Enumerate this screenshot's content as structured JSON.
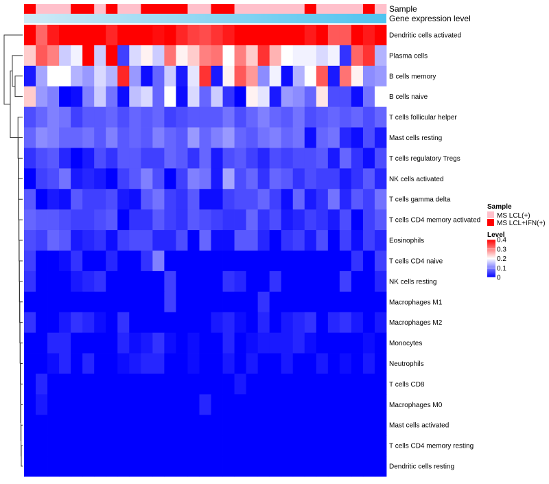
{
  "chart_data": {
    "type": "heatmap",
    "annotation_labels": [
      "Sample",
      "Gene expression level"
    ],
    "rows": [
      "Dendritic cells activated",
      "Plasma cells",
      "B cells memory",
      "B cells naive",
      "T cells follicular helper",
      "Mast cells resting",
      "T cells regulatory  Tregs",
      "NK cells activated",
      "T cells gamma delta",
      "T cells CD4 memory activated",
      "Eosinophils",
      "T cells CD4 naive",
      "NK cells resting",
      "Macrophages M1",
      "Macrophages M2",
      "Monocytes",
      "Neutrophils",
      "T cells CD8",
      "Macrophages M0",
      "Mast cells activated",
      "T cells CD4 memory resting",
      "Dendritic cells resting"
    ],
    "sample_groups": [
      "MS LCL+IFN(+)",
      "MS LCL(+)",
      "MS LCL(+)",
      "MS LCL(+)",
      "MS LCL+IFN(+)",
      "MS LCL+IFN(+)",
      "MS LCL(+)",
      "MS LCL+IFN(+)",
      "MS LCL(+)",
      "MS LCL(+)",
      "MS LCL+IFN(+)",
      "MS LCL+IFN(+)",
      "MS LCL+IFN(+)",
      "MS LCL+IFN(+)",
      "MS LCL(+)",
      "MS LCL(+)",
      "MS LCL+IFN(+)",
      "MS LCL+IFN(+)",
      "MS LCL(+)",
      "MS LCL(+)",
      "MS LCL(+)",
      "MS LCL(+)",
      "MS LCL(+)",
      "MS LCL(+)",
      "MS LCL+IFN(+)",
      "MS LCL(+)",
      "MS LCL(+)",
      "MS LCL(+)",
      "MS LCL(+)",
      "MS LCL+IFN(+)",
      "MS LCL(+)"
    ],
    "expression_gradient": [
      "#cfeaf6",
      "#4fc3ef"
    ],
    "values": [
      [
        0.4,
        0.32,
        0.38,
        0.42,
        0.43,
        0.4,
        0.43,
        0.37,
        0.43,
        0.41,
        0.42,
        0.39,
        0.43,
        0.37,
        0.35,
        0.34,
        0.36,
        0.38,
        0.4,
        0.41,
        0.43,
        0.44,
        0.44,
        0.4,
        0.38,
        0.41,
        0.33,
        0.33,
        0.41,
        0.38,
        0.4
      ],
      [
        0.24,
        0.33,
        0.3,
        0.16,
        0.19,
        0.42,
        0.16,
        0.42,
        0.05,
        0.17,
        0.21,
        0.16,
        0.31,
        0.21,
        0.24,
        0.3,
        0.31,
        0.2,
        0.3,
        0.24,
        0.36,
        0.26,
        0.2,
        0.19,
        0.19,
        0.17,
        0.19,
        0.04,
        0.32,
        0.36,
        0.14
      ],
      [
        0.02,
        0.13,
        0.2,
        0.2,
        0.14,
        0.12,
        0.17,
        0.14,
        0.37,
        0.12,
        0.01,
        0.08,
        0.16,
        0.02,
        0.18,
        0.36,
        0.02,
        0.21,
        0.33,
        0.28,
        0.11,
        0.19,
        0.01,
        0.14,
        0.2,
        0.33,
        0.02,
        0.31,
        0.21,
        0.11,
        0.12
      ],
      [
        0.24,
        0.12,
        0.1,
        0.0,
        0.01,
        0.1,
        0.16,
        0.09,
        0.01,
        0.15,
        0.17,
        0.08,
        0.2,
        0.01,
        0.17,
        0.08,
        0.16,
        0.04,
        0.0,
        0.21,
        0.18,
        0.02,
        0.12,
        0.11,
        0.08,
        0.22,
        0.06,
        0.06,
        0.01,
        0.09,
        0.2
      ],
      [
        0.06,
        0.08,
        0.1,
        0.09,
        0.05,
        0.07,
        0.07,
        0.08,
        0.06,
        0.08,
        0.07,
        0.08,
        0.05,
        0.06,
        0.07,
        0.07,
        0.07,
        0.09,
        0.06,
        0.08,
        0.1,
        0.08,
        0.07,
        0.09,
        0.06,
        0.07,
        0.08,
        0.07,
        0.08,
        0.06,
        0.08
      ],
      [
        0.08,
        0.11,
        0.1,
        0.08,
        0.08,
        0.09,
        0.07,
        0.1,
        0.07,
        0.08,
        0.07,
        0.1,
        0.08,
        0.07,
        0.12,
        0.08,
        0.1,
        0.12,
        0.08,
        0.07,
        0.09,
        0.1,
        0.08,
        0.09,
        0.01,
        0.08,
        0.09,
        0.03,
        0.01,
        0.06,
        0.02
      ],
      [
        0.04,
        0.06,
        0.07,
        0.03,
        0.0,
        0.02,
        0.06,
        0.04,
        0.07,
        0.07,
        0.05,
        0.05,
        0.08,
        0.07,
        0.04,
        0.08,
        0.02,
        0.06,
        0.07,
        0.05,
        0.03,
        0.06,
        0.05,
        0.06,
        0.06,
        0.07,
        0.02,
        0.08,
        0.04,
        0.01,
        0.06
      ],
      [
        0.0,
        0.05,
        0.06,
        0.09,
        0.02,
        0.03,
        0.02,
        0.0,
        0.05,
        0.07,
        0.1,
        0.06,
        0.0,
        0.05,
        0.1,
        0.09,
        0.02,
        0.13,
        0.06,
        0.08,
        0.04,
        0.08,
        0.07,
        0.04,
        0.06,
        0.05,
        0.05,
        0.02,
        0.04,
        0.07,
        0.03
      ],
      [
        0.07,
        0.0,
        0.02,
        0.01,
        0.07,
        0.05,
        0.05,
        0.06,
        0.02,
        0.01,
        0.07,
        0.09,
        0.05,
        0.04,
        0.07,
        0.01,
        0.01,
        0.05,
        0.06,
        0.06,
        0.08,
        0.05,
        0.01,
        0.08,
        0.02,
        0.04,
        0.09,
        0.03,
        0.07,
        0.05,
        0.09
      ],
      [
        0.08,
        0.07,
        0.07,
        0.06,
        0.05,
        0.05,
        0.06,
        0.07,
        0.0,
        0.04,
        0.04,
        0.07,
        0.05,
        0.04,
        0.07,
        0.06,
        0.05,
        0.04,
        0.04,
        0.08,
        0.04,
        0.06,
        0.02,
        0.03,
        0.05,
        0.04,
        0.02,
        0.06,
        0.0,
        0.05,
        0.07
      ],
      [
        0.06,
        0.05,
        0.08,
        0.07,
        0.02,
        0.03,
        0.04,
        0.01,
        0.05,
        0.06,
        0.06,
        0.03,
        0.03,
        0.06,
        0.0,
        0.08,
        0.01,
        0.01,
        0.07,
        0.07,
        0.03,
        0.0,
        0.04,
        0.05,
        0.02,
        0.06,
        0.0,
        0.05,
        0.01,
        0.05,
        0.03
      ],
      [
        0.05,
        0.0,
        0.0,
        0.01,
        0.04,
        0.0,
        0.0,
        0.03,
        0.0,
        0.0,
        0.04,
        0.1,
        0.0,
        0.0,
        0.0,
        0.0,
        0.0,
        0.0,
        0.0,
        0.0,
        0.0,
        0.0,
        0.0,
        0.0,
        0.0,
        0.0,
        0.0,
        0.0,
        0.04,
        0.0,
        0.05
      ],
      [
        0.04,
        0.0,
        0.0,
        0.0,
        0.02,
        0.03,
        0.04,
        0.0,
        0.0,
        0.0,
        0.0,
        0.0,
        0.05,
        0.0,
        0.0,
        0.0,
        0.0,
        0.04,
        0.03,
        0.0,
        0.0,
        0.04,
        0.0,
        0.0,
        0.0,
        0.0,
        0.0,
        0.05,
        0.0,
        0.0,
        0.03
      ],
      [
        0.0,
        0.0,
        0.0,
        0.0,
        0.0,
        0.0,
        0.0,
        0.0,
        0.0,
        0.0,
        0.0,
        0.0,
        0.05,
        0.0,
        0.0,
        0.0,
        0.0,
        0.0,
        0.0,
        0.0,
        0.04,
        0.0,
        0.0,
        0.0,
        0.0,
        0.0,
        0.0,
        0.0,
        0.0,
        0.0,
        0.0
      ],
      [
        0.04,
        0.0,
        0.0,
        0.02,
        0.04,
        0.03,
        0.01,
        0.0,
        0.04,
        0.0,
        0.0,
        0.0,
        0.0,
        0.0,
        0.0,
        0.0,
        0.02,
        0.03,
        0.01,
        0.0,
        0.03,
        0.0,
        0.02,
        0.03,
        0.04,
        0.0,
        0.03,
        0.04,
        0.02,
        0.0,
        0.02
      ],
      [
        0.0,
        0.0,
        0.03,
        0.03,
        0.0,
        0.0,
        0.0,
        0.0,
        0.03,
        0.01,
        0.02,
        0.04,
        0.01,
        0.0,
        0.01,
        0.0,
        0.0,
        0.03,
        0.0,
        0.01,
        0.02,
        0.02,
        0.02,
        0.03,
        0.01,
        0.0,
        0.0,
        0.0,
        0.0,
        0.01,
        0.0
      ],
      [
        0.0,
        0.0,
        0.01,
        0.03,
        0.0,
        0.03,
        0.0,
        0.0,
        0.01,
        0.02,
        0.03,
        0.03,
        0.0,
        0.0,
        0.01,
        0.0,
        0.0,
        0.02,
        0.0,
        0.02,
        0.0,
        0.0,
        0.02,
        0.0,
        0.0,
        0.02,
        0.0,
        0.01,
        0.0,
        0.02,
        0.0
      ],
      [
        0.0,
        0.03,
        0.0,
        0.0,
        0.0,
        0.0,
        0.0,
        0.0,
        0.0,
        0.0,
        0.0,
        0.0,
        0.0,
        0.0,
        0.0,
        0.0,
        0.0,
        0.0,
        0.02,
        0.0,
        0.0,
        0.0,
        0.0,
        0.0,
        0.0,
        0.0,
        0.0,
        0.0,
        0.0,
        0.0,
        0.0
      ],
      [
        0.0,
        0.02,
        0.0,
        0.0,
        0.0,
        0.0,
        0.0,
        0.0,
        0.0,
        0.0,
        0.0,
        0.0,
        0.0,
        0.0,
        0.0,
        0.03,
        0.0,
        0.0,
        0.0,
        0.0,
        0.0,
        0.0,
        0.0,
        0.0,
        0.0,
        0.0,
        0.0,
        0.0,
        0.0,
        0.0,
        0.0
      ],
      [
        0.0,
        0.0,
        0.0,
        0.0,
        0.0,
        0.0,
        0.0,
        0.0,
        0.0,
        0.0,
        0.0,
        0.0,
        0.0,
        0.0,
        0.0,
        0.0,
        0.0,
        0.0,
        0.0,
        0.0,
        0.0,
        0.0,
        0.0,
        0.0,
        0.0,
        0.0,
        0.0,
        0.0,
        0.0,
        0.0,
        0.0
      ],
      [
        0.0,
        0.0,
        0.0,
        0.0,
        0.0,
        0.0,
        0.0,
        0.0,
        0.0,
        0.0,
        0.0,
        0.0,
        0.0,
        0.0,
        0.0,
        0.0,
        0.0,
        0.0,
        0.0,
        0.0,
        0.0,
        0.0,
        0.0,
        0.0,
        0.0,
        0.0,
        0.0,
        0.0,
        0.0,
        0.0,
        0.0
      ],
      [
        0.0,
        0.0,
        0.0,
        0.0,
        0.0,
        0.0,
        0.0,
        0.0,
        0.0,
        0.0,
        0.0,
        0.0,
        0.0,
        0.0,
        0.0,
        0.0,
        0.0,
        0.0,
        0.0,
        0.0,
        0.0,
        0.0,
        0.0,
        0.0,
        0.0,
        0.0,
        0.0,
        0.0,
        0.0,
        0.0,
        0.0
      ]
    ],
    "color_scale": {
      "stops": [
        0,
        0.2,
        0.4
      ],
      "colors": [
        "#0000ff",
        "#ffffff",
        "#ff0000"
      ]
    },
    "legend": {
      "sample_title": "Sample",
      "sample_entries": [
        {
          "label": "MS LCL(+)",
          "color": "#ffc0cb"
        },
        {
          "label": "MS LCL+IFN(+)",
          "color": "#ff0000"
        }
      ],
      "level_title": "Level",
      "level_ticks": [
        "0.4",
        "0.3",
        "0.2",
        "0.1",
        "0"
      ]
    }
  }
}
